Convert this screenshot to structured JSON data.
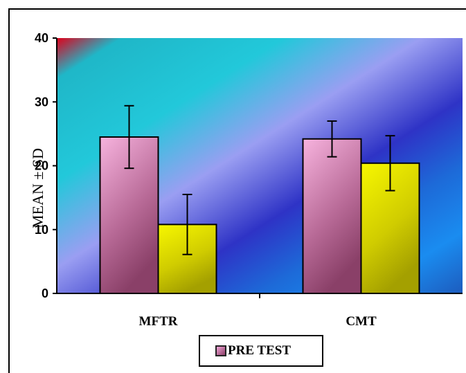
{
  "chart_data": {
    "type": "bar",
    "title": "",
    "xlabel": "",
    "ylabel": "MEAN ± SD",
    "ylim": [
      0,
      40
    ],
    "yticks": [
      0,
      10,
      20,
      30,
      40
    ],
    "ytick_labels": [
      "0",
      "10",
      "20",
      "30",
      "40"
    ],
    "categories": [
      "MFTR",
      "CMT"
    ],
    "series": [
      {
        "name": "PRE TEST",
        "values": [
          24.5,
          24.2
        ],
        "errors": [
          4.9,
          2.8
        ],
        "color": "#c97aa6"
      },
      {
        "values": [
          10.8,
          20.4
        ],
        "errors": [
          4.7,
          4.3
        ],
        "color": "#d8d800"
      }
    ],
    "legend": {
      "position": "bottom",
      "entries": [
        "PRE TEST"
      ]
    },
    "grid": false
  }
}
